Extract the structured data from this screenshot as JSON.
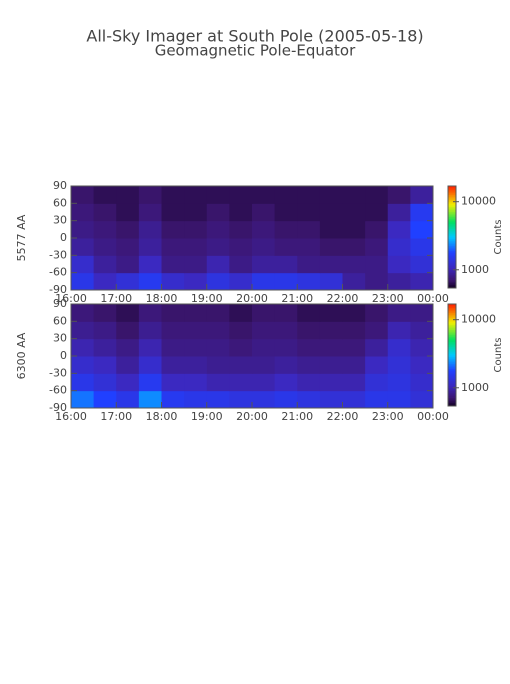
{
  "header": {
    "title": "All-Sky Imager at South Pole (2005-05-18)",
    "subtitle": "Geomagnetic Pole-Equator"
  },
  "chart_data": [
    {
      "type": "heatmap",
      "ylabel": "5577 AA",
      "colorbar_label": "Counts",
      "x": [
        16.25,
        16.75,
        17.25,
        17.75,
        18.25,
        18.75,
        19.25,
        19.75,
        20.25,
        20.75,
        21.25,
        21.75,
        22.25,
        22.75,
        23.25,
        23.75
      ],
      "y": [
        -75,
        -45,
        -15,
        15,
        45,
        75
      ],
      "z": [
        [
          1500,
          1100,
          1300,
          1600,
          1200,
          1100,
          1400,
          1200,
          1500,
          1500,
          1400,
          1300,
          900,
          800,
          900,
          1000
        ],
        [
          1200,
          900,
          800,
          1100,
          800,
          800,
          1000,
          800,
          900,
          900,
          800,
          800,
          800,
          800,
          1100,
          1300
        ],
        [
          900,
          800,
          750,
          900,
          750,
          750,
          800,
          750,
          800,
          750,
          750,
          700,
          700,
          750,
          1200,
          1500
        ],
        [
          800,
          750,
          700,
          850,
          700,
          700,
          750,
          700,
          750,
          700,
          700,
          650,
          650,
          700,
          1100,
          1800
        ],
        [
          750,
          700,
          650,
          750,
          650,
          650,
          700,
          650,
          700,
          650,
          650,
          650,
          650,
          650,
          900,
          1600
        ],
        [
          700,
          650,
          650,
          700,
          650,
          650,
          650,
          650,
          650,
          650,
          650,
          650,
          650,
          650,
          700,
          900
        ]
      ],
      "xlim": [
        16,
        24
      ],
      "xticks": [
        {
          "value": 16,
          "label": "16:00"
        },
        {
          "value": 17,
          "label": "17:00"
        },
        {
          "value": 18,
          "label": "18:00"
        },
        {
          "value": 19,
          "label": "19:00"
        },
        {
          "value": 20,
          "label": "20:00"
        },
        {
          "value": 21,
          "label": "21:00"
        },
        {
          "value": 22,
          "label": "22:00"
        },
        {
          "value": 23,
          "label": "23:00"
        },
        {
          "value": 24,
          "label": "00:00"
        }
      ],
      "ylim": [
        -90,
        90
      ],
      "yticks": [
        -90,
        -60,
        -30,
        0,
        30,
        60,
        90
      ],
      "clim": [
        540,
        17000
      ],
      "cticks": [
        1000,
        10000
      ],
      "log_color": true
    },
    {
      "type": "heatmap",
      "ylabel": "6300 AA",
      "colorbar_label": "Counts",
      "x": [
        16.25,
        16.75,
        17.25,
        17.75,
        18.25,
        18.75,
        19.25,
        19.75,
        20.25,
        20.75,
        21.25,
        21.75,
        22.25,
        22.75,
        23.25,
        23.75
      ],
      "y": [
        -75,
        -45,
        -15,
        15,
        45,
        75
      ],
      "z": [
        [
          2200,
          1800,
          1500,
          2400,
          1600,
          1500,
          1500,
          1400,
          1400,
          1500,
          1400,
          1300,
          1300,
          1500,
          1500,
          1300
        ],
        [
          1500,
          1300,
          1100,
          1600,
          1100,
          1100,
          1000,
          1000,
          1000,
          1100,
          1000,
          1000,
          1000,
          1300,
          1400,
          1200
        ],
        [
          1200,
          1100,
          900,
          1200,
          900,
          900,
          850,
          850,
          850,
          900,
          850,
          850,
          850,
          1100,
          1300,
          1100
        ],
        [
          1000,
          900,
          800,
          1000,
          800,
          800,
          800,
          750,
          800,
          800,
          750,
          750,
          750,
          900,
          1200,
          1000
        ],
        [
          850,
          800,
          700,
          850,
          750,
          750,
          750,
          700,
          750,
          750,
          700,
          700,
          700,
          750,
          1000,
          900
        ],
        [
          750,
          700,
          650,
          750,
          700,
          700,
          700,
          650,
          700,
          700,
          650,
          650,
          650,
          700,
          800,
          800
        ]
      ],
      "xlim": [
        16,
        24
      ],
      "xticks": [
        {
          "value": 16,
          "label": "16:00"
        },
        {
          "value": 17,
          "label": "17:00"
        },
        {
          "value": 18,
          "label": "18:00"
        },
        {
          "value": 19,
          "label": "19:00"
        },
        {
          "value": 20,
          "label": "20:00"
        },
        {
          "value": 21,
          "label": "21:00"
        },
        {
          "value": 22,
          "label": "22:00"
        },
        {
          "value": 23,
          "label": "23:00"
        },
        {
          "value": 24,
          "label": "00:00"
        }
      ],
      "ylim": [
        -90,
        90
      ],
      "yticks": [
        -90,
        -60,
        -30,
        0,
        30,
        60,
        90
      ],
      "clim": [
        540,
        17000
      ],
      "cticks": [
        1000,
        10000
      ],
      "log_color": true
    }
  ]
}
